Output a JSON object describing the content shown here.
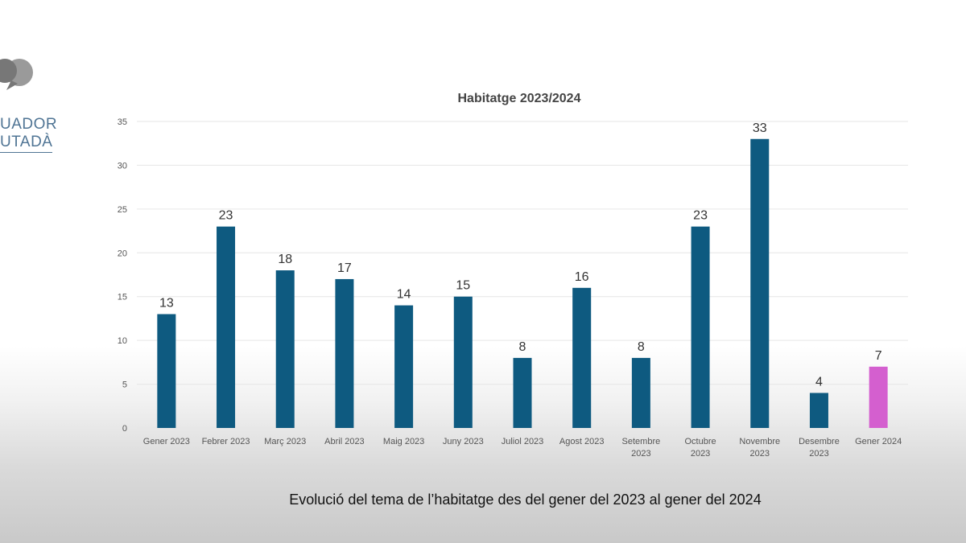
{
  "logo": {
    "line1": "UADOR",
    "line2": "UTADÀ"
  },
  "caption": "Evolució del tema de l’habitatge des del gener del 2023 al gener del 2024",
  "chart_data": {
    "type": "bar",
    "title": "Habitatge 2023/2024",
    "xlabel": "",
    "ylabel": "",
    "ylim": [
      0,
      35
    ],
    "yticks": [
      0,
      5,
      10,
      15,
      20,
      25,
      30,
      35
    ],
    "grid": true,
    "categories": [
      [
        "Gener 2023"
      ],
      [
        "Febrer 2023"
      ],
      [
        "Març 2023"
      ],
      [
        "Abril 2023"
      ],
      [
        "Maig 2023"
      ],
      [
        "Juny 2023"
      ],
      [
        "Juliol 2023"
      ],
      [
        "Agost 2023"
      ],
      [
        "Setembre",
        "2023"
      ],
      [
        "Octubre",
        "2023"
      ],
      [
        "Novembre",
        "2023"
      ],
      [
        "Desembre",
        "2023"
      ],
      [
        "Gener 2024"
      ]
    ],
    "values": [
      13,
      23,
      18,
      17,
      14,
      15,
      8,
      16,
      8,
      23,
      33,
      4,
      7
    ],
    "colors": {
      "default": "#0e5a80",
      "highlight": "#d45fcf",
      "highlight_index": 12,
      "grid": "#e6e6e6",
      "axis_text": "#555555",
      "label_text": "#333333"
    }
  }
}
